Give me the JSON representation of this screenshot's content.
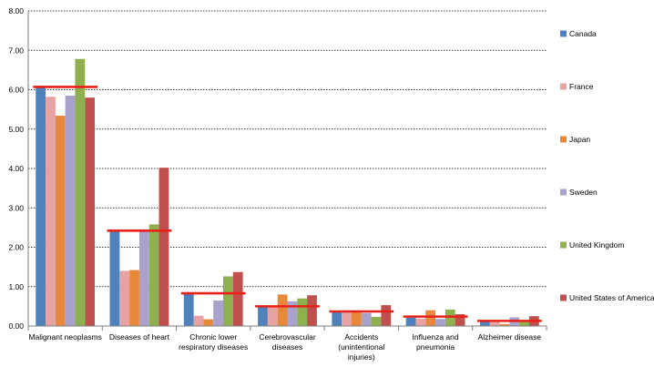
{
  "chart_data": {
    "type": "bar",
    "categories": [
      [
        "Malignant neoplasms"
      ],
      [
        "Diseases of heart"
      ],
      [
        "Chronic lower",
        "respiratory diseases"
      ],
      [
        "Cerebrovascular",
        "diseases"
      ],
      [
        "Accidents",
        "(unintentional",
        "injuries)"
      ],
      [
        "Influenza and",
        "pneumonia"
      ],
      [
        "Alzheimer disease"
      ]
    ],
    "series": [
      {
        "name": "Canada",
        "color": "#4F81BD",
        "values": [
          6.1,
          2.41,
          0.82,
          0.5,
          0.35,
          0.21,
          0.14
        ]
      },
      {
        "name": "France",
        "color": "#E6A3A3",
        "values": [
          5.82,
          1.4,
          0.26,
          0.5,
          0.35,
          0.19,
          0.1
        ]
      },
      {
        "name": "Japan",
        "color": "#E8883A",
        "values": [
          5.34,
          1.42,
          0.17,
          0.8,
          0.37,
          0.4,
          0.05
        ]
      },
      {
        "name": "Sweden",
        "color": "#A9A2CC",
        "values": [
          5.85,
          2.44,
          0.65,
          0.63,
          0.33,
          0.18,
          0.22
        ]
      },
      {
        "name": "United Kingdom",
        "color": "#8FB04F",
        "values": [
          6.78,
          2.58,
          1.26,
          0.7,
          0.23,
          0.42,
          0.14
        ]
      },
      {
        "name": "United States of America",
        "color": "#C0504D",
        "values": [
          5.8,
          4.02,
          1.37,
          0.78,
          0.53,
          0.3,
          0.25
        ]
      }
    ],
    "reference_lines": {
      "color": "#E8201A",
      "values": [
        6.07,
        2.42,
        0.83,
        0.5,
        0.37,
        0.24,
        0.13
      ]
    },
    "yticks": [
      "0.00",
      "1.00",
      "2.00",
      "3.00",
      "4.00",
      "5.00",
      "6.00",
      "7.00",
      "8.00"
    ],
    "ylim": [
      0,
      8
    ],
    "grid": "dotted horizontal",
    "legend_position": "right"
  }
}
